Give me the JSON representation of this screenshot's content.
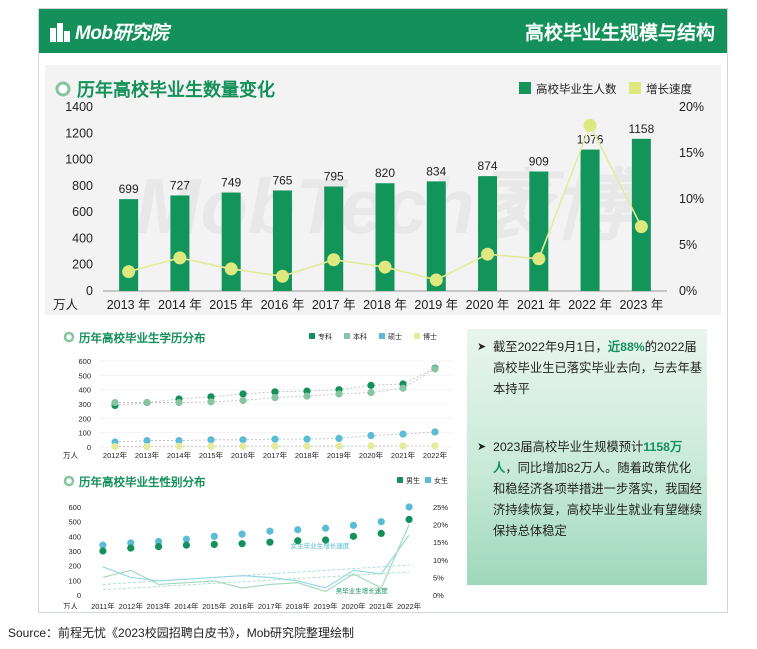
{
  "header": {
    "logo_text": "Mob研究院",
    "title": "高校毕业生规模与结构"
  },
  "colors": {
    "brand": "#14915a",
    "bar": "#12945b",
    "growth_line": "#e4ec9c",
    "growth_dot": "#dde87f",
    "zhuanke": "#14915a",
    "benke": "#86c5a1",
    "shuoshi": "#5bbcd6",
    "boshi": "#e4ec9c",
    "male": "#14915a",
    "female": "#5bbcd6"
  },
  "watermark": "MobTech袤博",
  "chart_data": [
    {
      "id": "main",
      "type": "bar",
      "title": "历年高校毕业生数量变化",
      "y_unit": "万人",
      "year_suffix": "年",
      "categories": [
        "2013",
        "2014",
        "2015",
        "2016",
        "2017",
        "2018",
        "2019",
        "2020",
        "2021",
        "2022",
        "2023"
      ],
      "series": [
        {
          "name": "高校毕业生人数",
          "type": "bar",
          "values": [
            699,
            727,
            749,
            765,
            795,
            820,
            834,
            874,
            909,
            1076,
            1158
          ]
        },
        {
          "name": "增长速度",
          "type": "line",
          "axis": "right",
          "values": [
            2.1,
            3.6,
            2.4,
            1.6,
            3.4,
            2.6,
            1.2,
            4.0,
            3.5,
            18.0,
            7.0
          ]
        }
      ],
      "ylim": [
        0,
        1400
      ],
      "yticks": [
        0,
        200,
        400,
        600,
        800,
        1000,
        1200,
        1400
      ],
      "y2lim": [
        0,
        20
      ],
      "y2ticks": [
        "0%",
        "5%",
        "10%",
        "15%",
        "20%"
      ]
    },
    {
      "id": "education",
      "type": "line",
      "title": "历年高校毕业生学历分布",
      "y_unit": "万人",
      "categories": [
        "2012年",
        "2013年",
        "2014年",
        "2015年",
        "2016年",
        "2017年",
        "2018年",
        "2019年",
        "2020年",
        "2021年",
        "2022年"
      ],
      "series": [
        {
          "name": "专科",
          "values": [
            290,
            310,
            335,
            350,
            370,
            385,
            390,
            400,
            430,
            440,
            550
          ]
        },
        {
          "name": "本科",
          "values": [
            310,
            310,
            310,
            315,
            325,
            345,
            355,
            370,
            380,
            410,
            545
          ]
        },
        {
          "name": "硕士",
          "values": [
            35,
            45,
            45,
            50,
            50,
            55,
            55,
            60,
            80,
            90,
            105
          ]
        },
        {
          "name": "博士",
          "values": [
            3,
            4,
            5,
            5,
            6,
            6,
            6,
            7,
            7,
            8,
            8
          ]
        }
      ],
      "ylim": [
        0,
        600
      ],
      "yticks": [
        0,
        100,
        200,
        300,
        400,
        500,
        600
      ]
    },
    {
      "id": "gender",
      "type": "line",
      "title": "历年高校毕业生性别分布",
      "y_unit": "万人",
      "categories": [
        "2011年",
        "2012年",
        "2013年",
        "2014年",
        "2015年",
        "2016年",
        "2017年",
        "2018年",
        "2019年",
        "2020年",
        "2021年",
        "2022年"
      ],
      "series": [
        {
          "name": "男生",
          "values": [
            300,
            320,
            330,
            340,
            345,
            350,
            360,
            370,
            375,
            400,
            420,
            515
          ]
        },
        {
          "name": "女生",
          "values": [
            340,
            355,
            365,
            380,
            400,
            415,
            435,
            445,
            455,
            475,
            500,
            600
          ]
        },
        {
          "name": "女生毕业生增长速度",
          "axis": "right",
          "values": [
            8,
            5,
            4,
            4.5,
            5,
            5.5,
            5,
            4,
            2,
            7,
            6,
            17
          ]
        },
        {
          "name": "男毕业生增长速度",
          "axis": "right",
          "values": [
            5,
            7,
            3,
            3.5,
            4,
            2,
            3,
            3.5,
            1,
            6,
            2,
            20
          ]
        }
      ],
      "ylim": [
        0,
        600
      ],
      "yticks": [
        0,
        100,
        200,
        300,
        400,
        500,
        600
      ],
      "y2lim": [
        0,
        25
      ],
      "y2ticks": [
        "0%",
        "5%",
        "10%",
        "15%",
        "20%",
        "25%"
      ]
    }
  ],
  "notes": [
    {
      "arrow": "➤",
      "text_before": "截至2022年9月1日，",
      "highlight": "近88%",
      "text_after": "的2022届高校毕业生已落实毕业去向，与去年基本持平"
    },
    {
      "arrow": "➤",
      "text_before": "2023届高校毕业生规模预计",
      "highlight": "1158万人",
      "text_after": "，同比增加82万人。随着政策优化和稳经济各项举措进一步落实，我国经济持续恢复，高校毕业生就业有望继续保持总体稳定"
    }
  ],
  "source": "Source：前程无忧《2023校园招聘白皮书》，Mob研究院整理绘制"
}
